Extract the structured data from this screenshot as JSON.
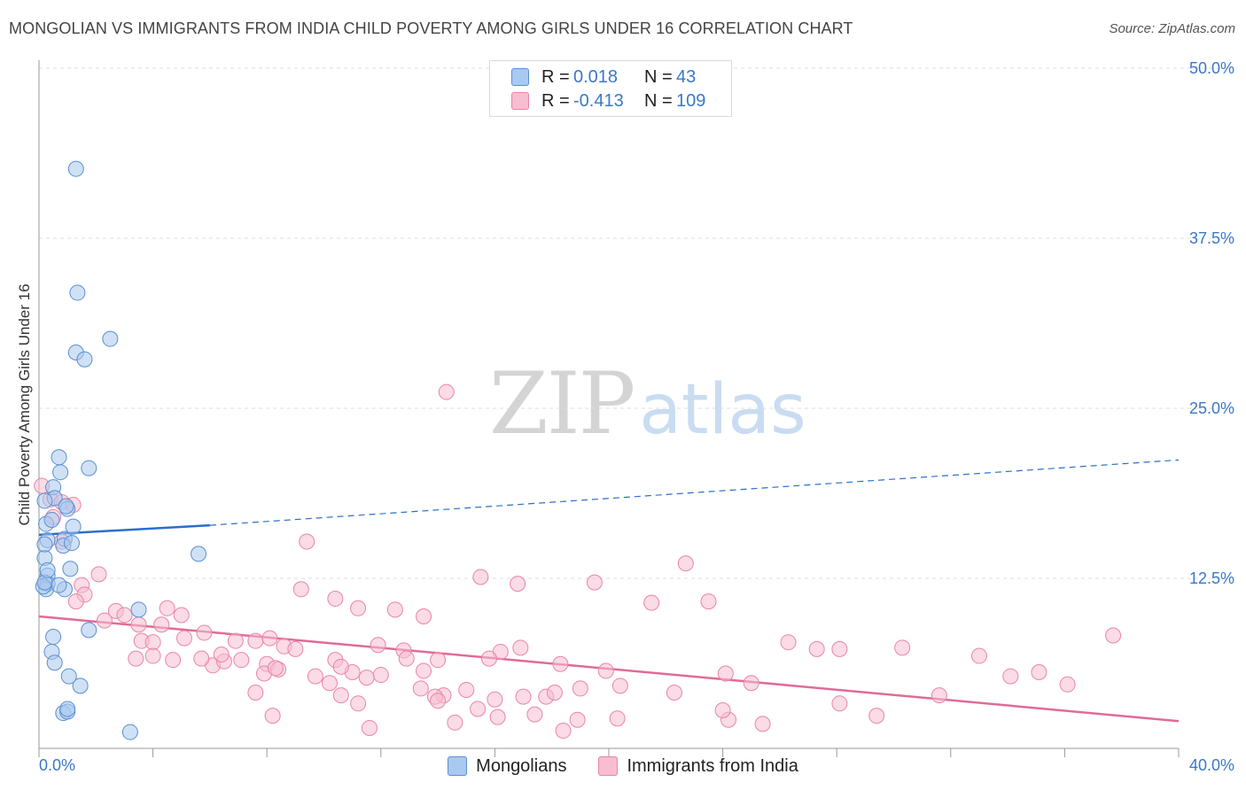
{
  "title": "MONGOLIAN VS IMMIGRANTS FROM INDIA CHILD POVERTY AMONG GIRLS UNDER 16 CORRELATION CHART",
  "source": "Source: ZipAtlas.com",
  "watermark": {
    "zip": "ZIP",
    "atlas": "atlas"
  },
  "legend": {
    "mongolians": {
      "r_label": "R =",
      "r_value": "0.018",
      "n_label": "N =",
      "n_value": "43",
      "name": "Mongolians"
    },
    "india": {
      "r_label": "R =",
      "r_value": "-0.413",
      "n_label": "N =",
      "n_value": "109",
      "name": "Immigrants from India"
    }
  },
  "colors": {
    "mongolians_fill": "#aac9ef",
    "mongolians_stroke": "#5b8fd1",
    "mongolians_line": "#2a6fcb",
    "india_fill": "#f7bdd0",
    "india_stroke": "#e985a8",
    "india_line": "#e06b98",
    "tick_label": "#3a78c9",
    "grid": "#dddddd"
  },
  "chart_data": {
    "type": "scatter",
    "xlabel": "",
    "ylabel": "Child Poverty Among Girls Under 16",
    "xlim": [
      0,
      40
    ],
    "ylim": [
      0,
      50
    ],
    "x_tick_labels": [
      {
        "value": 0,
        "label": "0.0%"
      },
      {
        "value": 40,
        "label": "40.0%"
      }
    ],
    "y_tick_labels": [
      {
        "value": 12.5,
        "label": "12.5%"
      },
      {
        "value": 25,
        "label": "25.0%"
      },
      {
        "value": 37.5,
        "label": "37.5%"
      },
      {
        "value": 50,
        "label": "50.0%"
      }
    ],
    "series": [
      {
        "name": "Mongolians",
        "R": 0.018,
        "N": 43,
        "trend": {
          "x0": 0,
          "y0": 15.7,
          "x1": 6.0,
          "y1": 16.4,
          "x_dash_end": 40,
          "y_dash_end": 21.2
        },
        "points": [
          [
            1.3,
            42.6
          ],
          [
            1.35,
            33.5
          ],
          [
            1.3,
            29.1
          ],
          [
            1.6,
            28.6
          ],
          [
            2.5,
            30.1
          ],
          [
            0.7,
            21.4
          ],
          [
            0.75,
            20.3
          ],
          [
            1.75,
            20.6
          ],
          [
            0.5,
            19.2
          ],
          [
            0.55,
            18.4
          ],
          [
            0.2,
            18.2
          ],
          [
            0.25,
            16.5
          ],
          [
            0.45,
            16.8
          ],
          [
            1.0,
            17.6
          ],
          [
            1.2,
            16.3
          ],
          [
            0.3,
            15.3
          ],
          [
            0.9,
            15.4
          ],
          [
            0.85,
            14.9
          ],
          [
            0.2,
            14.0
          ],
          [
            1.1,
            13.2
          ],
          [
            0.3,
            12.7
          ],
          [
            0.3,
            12.1
          ],
          [
            0.25,
            11.7
          ],
          [
            0.15,
            11.9
          ],
          [
            0.9,
            11.7
          ],
          [
            0.2,
            12.2
          ],
          [
            5.6,
            14.3
          ],
          [
            3.5,
            10.2
          ],
          [
            1.75,
            8.7
          ],
          [
            0.5,
            8.2
          ],
          [
            0.45,
            7.1
          ],
          [
            0.55,
            6.3
          ],
          [
            1.05,
            5.3
          ],
          [
            1.45,
            4.6
          ],
          [
            0.85,
            2.6
          ],
          [
            1.0,
            2.7
          ],
          [
            1.0,
            2.9
          ],
          [
            3.2,
            1.2
          ],
          [
            0.7,
            12.0
          ],
          [
            0.3,
            13.1
          ],
          [
            1.15,
            15.1
          ],
          [
            0.95,
            17.8
          ],
          [
            0.2,
            15.0
          ]
        ]
      },
      {
        "name": "Immigrants from India",
        "R": -0.413,
        "N": 109,
        "trend": {
          "x0": 0,
          "y0": 9.7,
          "x1": 40,
          "y1": 2.0
        },
        "points": [
          [
            0.1,
            19.3
          ],
          [
            0.4,
            18.3
          ],
          [
            0.8,
            18.1
          ],
          [
            1.2,
            17.9
          ],
          [
            0.5,
            17.0
          ],
          [
            0.8,
            15.2
          ],
          [
            14.3,
            26.2
          ],
          [
            9.4,
            15.2
          ],
          [
            22.7,
            13.6
          ],
          [
            15.5,
            12.6
          ],
          [
            16.8,
            12.1
          ],
          [
            2.1,
            12.8
          ],
          [
            1.5,
            12.0
          ],
          [
            1.6,
            11.3
          ],
          [
            1.3,
            10.8
          ],
          [
            9.2,
            11.7
          ],
          [
            10.4,
            11.0
          ],
          [
            11.2,
            10.3
          ],
          [
            12.5,
            10.2
          ],
          [
            13.5,
            9.7
          ],
          [
            19.5,
            12.2
          ],
          [
            21.5,
            10.7
          ],
          [
            23.5,
            10.8
          ],
          [
            2.7,
            10.1
          ],
          [
            2.3,
            9.4
          ],
          [
            3.0,
            9.8
          ],
          [
            4.5,
            10.3
          ],
          [
            5.0,
            9.8
          ],
          [
            4.3,
            9.1
          ],
          [
            3.5,
            9.1
          ],
          [
            5.1,
            8.1
          ],
          [
            5.8,
            8.5
          ],
          [
            3.6,
            7.9
          ],
          [
            4.0,
            7.8
          ],
          [
            7.6,
            7.9
          ],
          [
            6.9,
            7.9
          ],
          [
            8.1,
            8.1
          ],
          [
            8.6,
            7.5
          ],
          [
            9.0,
            7.3
          ],
          [
            11.9,
            7.6
          ],
          [
            12.8,
            7.2
          ],
          [
            14.0,
            6.5
          ],
          [
            16.2,
            7.1
          ],
          [
            16.9,
            7.4
          ],
          [
            26.3,
            7.8
          ],
          [
            27.3,
            7.3
          ],
          [
            28.1,
            7.3
          ],
          [
            30.3,
            7.4
          ],
          [
            37.7,
            8.3
          ],
          [
            3.4,
            6.6
          ],
          [
            4.7,
            6.5
          ],
          [
            6.1,
            6.1
          ],
          [
            6.5,
            6.4
          ],
          [
            7.1,
            6.5
          ],
          [
            8.0,
            6.2
          ],
          [
            8.4,
            5.8
          ],
          [
            10.4,
            6.5
          ],
          [
            11.0,
            5.6
          ],
          [
            12.0,
            5.4
          ],
          [
            12.9,
            6.6
          ],
          [
            13.5,
            5.7
          ],
          [
            15.8,
            6.6
          ],
          [
            18.3,
            6.2
          ],
          [
            19.9,
            5.7
          ],
          [
            9.7,
            5.3
          ],
          [
            10.2,
            4.8
          ],
          [
            4.0,
            6.8
          ],
          [
            5.7,
            6.6
          ],
          [
            6.4,
            6.9
          ],
          [
            7.9,
            5.5
          ],
          [
            8.3,
            5.9
          ],
          [
            10.6,
            6.0
          ],
          [
            11.5,
            5.2
          ],
          [
            13.4,
            4.4
          ],
          [
            14.2,
            3.9
          ],
          [
            15.0,
            4.3
          ],
          [
            16.0,
            3.6
          ],
          [
            17.0,
            3.8
          ],
          [
            17.8,
            3.8
          ],
          [
            18.1,
            4.1
          ],
          [
            19.0,
            4.4
          ],
          [
            20.4,
            4.6
          ],
          [
            22.3,
            4.1
          ],
          [
            13.9,
            3.8
          ],
          [
            14.0,
            3.5
          ],
          [
            15.4,
            2.9
          ],
          [
            16.1,
            2.3
          ],
          [
            17.4,
            2.5
          ],
          [
            14.6,
            1.9
          ],
          [
            11.6,
            1.5
          ],
          [
            8.2,
            2.4
          ],
          [
            7.6,
            4.1
          ],
          [
            11.2,
            3.3
          ],
          [
            10.6,
            3.9
          ],
          [
            24.1,
            5.5
          ],
          [
            25.0,
            4.8
          ],
          [
            24.2,
            2.1
          ],
          [
            24.0,
            2.8
          ],
          [
            25.4,
            1.8
          ],
          [
            18.4,
            1.3
          ],
          [
            18.9,
            2.1
          ],
          [
            20.3,
            2.2
          ],
          [
            28.1,
            3.3
          ],
          [
            29.4,
            2.4
          ],
          [
            31.6,
            3.9
          ],
          [
            33.0,
            6.8
          ],
          [
            34.1,
            5.3
          ],
          [
            35.1,
            5.6
          ],
          [
            36.1,
            4.7
          ]
        ]
      }
    ]
  }
}
